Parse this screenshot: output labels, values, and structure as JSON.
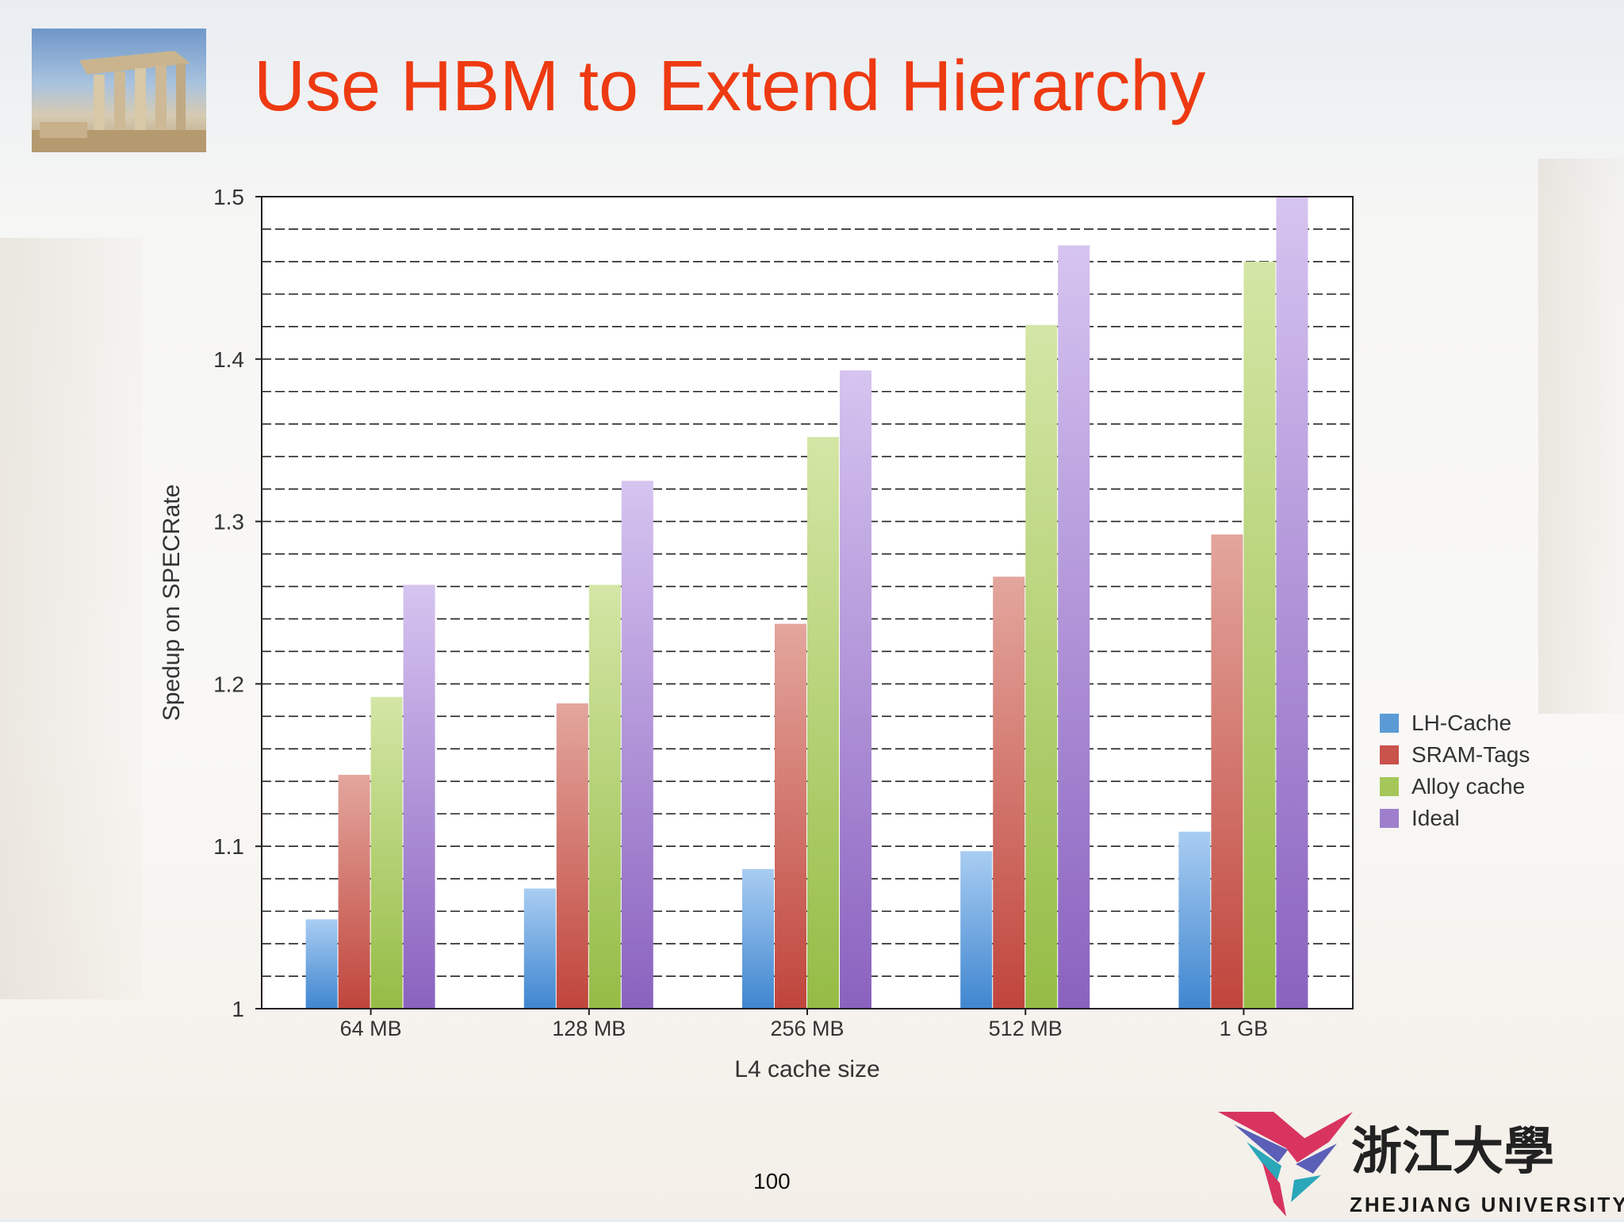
{
  "slide": {
    "title": "Use HBM to Extend Hierarchy",
    "page_number": "100",
    "logo_text": "ZHEJIANG UNIVERSITY",
    "logo_chinese": "浙江大學"
  },
  "chart_data": {
    "type": "bar",
    "categories": [
      "64 MB",
      "128 MB",
      "256 MB",
      "512 MB",
      "1 GB"
    ],
    "series": [
      {
        "name": "LH-Cache",
        "color": "#5b9bd5",
        "values": [
          1.055,
          1.074,
          1.086,
          1.097,
          1.109
        ]
      },
      {
        "name": "SRAM-Tags",
        "color": "#c9524a",
        "values": [
          1.144,
          1.188,
          1.237,
          1.266,
          1.292
        ]
      },
      {
        "name": "Alloy cache",
        "color": "#a5c75a",
        "values": [
          1.192,
          1.261,
          1.352,
          1.421,
          1.46
        ]
      },
      {
        "name": "Ideal",
        "color": "#9f7fcc",
        "values": [
          1.261,
          1.325,
          1.393,
          1.47,
          1.5
        ]
      }
    ],
    "xlabel": "L4 cache size",
    "ylabel": "Spedup on SPECRate",
    "ylim": [
      1,
      1.5
    ],
    "yticks": [
      1,
      1.1,
      1.2,
      1.3,
      1.4,
      1.5
    ],
    "ytick_labels": [
      "1",
      "1.1",
      "1.2",
      "1.3",
      "1.4",
      "1.5"
    ],
    "grid": true,
    "legend": "right"
  }
}
